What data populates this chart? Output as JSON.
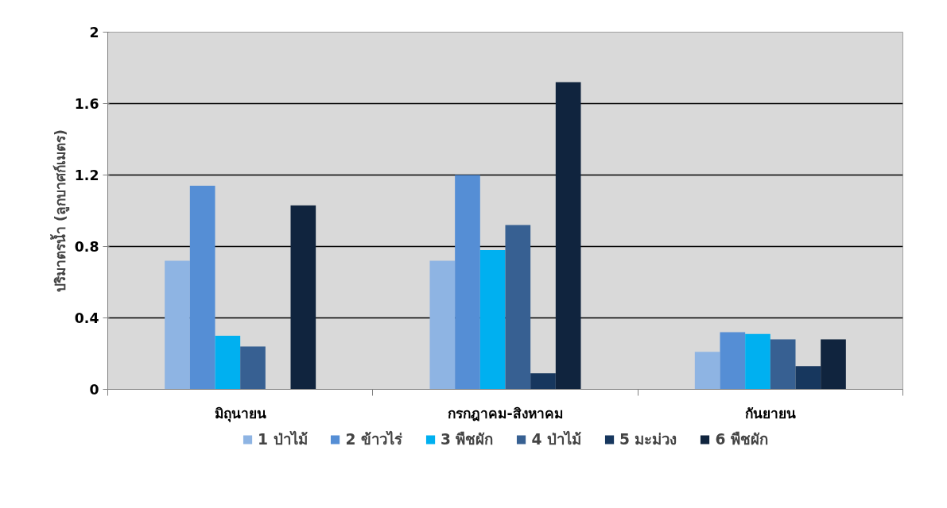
{
  "chart_data": {
    "type": "bar",
    "ylabel": "ปริมาตรน้ำ (ลูกบาศก์เมตร)",
    "categories": [
      "มิถุนายน",
      "กรกฎาคม-สิงหาคม",
      "กันยายน"
    ],
    "series": [
      {
        "name": "1 ป่าไม้",
        "color": "#8eb4e3",
        "values": [
          0.72,
          0.72,
          0.21
        ]
      },
      {
        "name": "2 ข้าวไร่",
        "color": "#558ed5",
        "values": [
          1.14,
          1.2,
          0.32
        ]
      },
      {
        "name": "3 พืชผัก",
        "color": "#00b0f0",
        "values": [
          0.3,
          0.78,
          0.31
        ]
      },
      {
        "name": "4 ป่าไม้",
        "color": "#376092",
        "values": [
          0.24,
          0.92,
          0.28
        ]
      },
      {
        "name": "5 มะม่วง",
        "color": "#17375e",
        "values": [
          null,
          0.09,
          0.13
        ]
      },
      {
        "name": "6 พืชผัก",
        "color": "#10243e",
        "values": [
          1.03,
          1.72,
          0.28
        ]
      }
    ],
    "ylim": [
      0,
      2
    ],
    "yticks": [
      0,
      0.4,
      0.8,
      1.2,
      1.6,
      2
    ],
    "grid": "y",
    "legend": "bottom"
  }
}
